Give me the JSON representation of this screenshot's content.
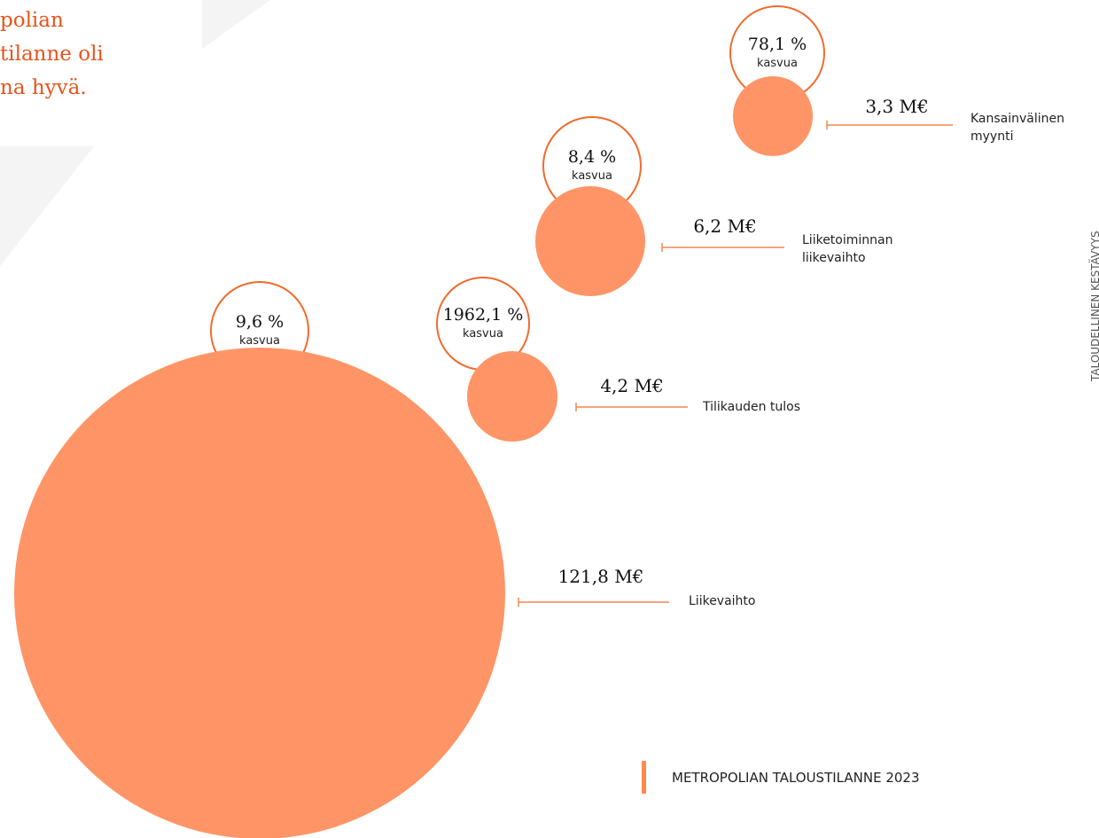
{
  "heading": {
    "lines": [
      "polian",
      "tilanne oli",
      "na hyvä."
    ]
  },
  "side_label": "TALOUDELLINEN KESTÄVYYS",
  "items": [
    {
      "value": "3,3 M€",
      "growth": "78,1 %",
      "growth_label": "kasvua",
      "name_lines": [
        "Kansainvälinen",
        "myynti"
      ]
    },
    {
      "value": "6,2 M€",
      "growth": "8,4 %",
      "growth_label": "kasvua",
      "name_lines": [
        "Liiketoiminnan",
        "liikevaihto"
      ]
    },
    {
      "value": "4,2 M€",
      "growth": "1962,1 %",
      "growth_label": "kasvua",
      "name_lines": [
        "Tilikauden tulos"
      ]
    },
    {
      "value": "121,8 M€",
      "growth": "9,6 %",
      "growth_label": "kasvua",
      "name_lines": [
        "Liikevaihto"
      ]
    }
  ],
  "footer": "METROPOLIAN TALOUSTILANNE 2023"
}
